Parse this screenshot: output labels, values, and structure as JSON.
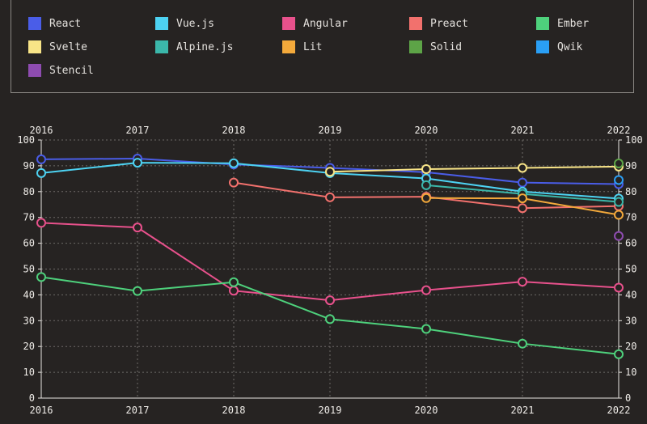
{
  "chart_data": {
    "type": "line",
    "title": "",
    "xlabel": "",
    "ylabel": "",
    "ylim": [
      0,
      100
    ],
    "yticks": [
      0,
      10,
      20,
      30,
      40,
      50,
      60,
      70,
      80,
      90,
      100
    ],
    "grid": true,
    "legend_position": "top",
    "categories": [
      "2016",
      "2017",
      "2018",
      "2019",
      "2020",
      "2021",
      "2022"
    ],
    "series": [
      {
        "name": "React",
        "color": "#4a5de8",
        "values": [
          92.5,
          92.8,
          90.5,
          89.2,
          87.5,
          83.5,
          82.9
        ]
      },
      {
        "name": "Vue.js",
        "color": "#4dd2f2",
        "values": [
          87.2,
          91.2,
          91,
          87.2,
          85.1,
          80,
          77.3
        ]
      },
      {
        "name": "Angular",
        "color": "#e8518c",
        "values": [
          67.9,
          66.1,
          41.6,
          37.9,
          41.8,
          45.1,
          42.8
        ]
      },
      {
        "name": "Preact",
        "color": "#f2716d",
        "values": [
          null,
          null,
          83.5,
          77.8,
          78,
          73.6,
          74.4
        ]
      },
      {
        "name": "Ember",
        "color": "#4ed17c",
        "values": [
          46.9,
          41.5,
          44.9,
          30.6,
          26.8,
          21.1,
          17
        ]
      },
      {
        "name": "Svelte",
        "color": "#f8e487",
        "values": [
          null,
          null,
          null,
          87.7,
          88.7,
          89.2,
          89.7
        ]
      },
      {
        "name": "Alpine.js",
        "color": "#3bb7aa",
        "values": [
          null,
          null,
          null,
          null,
          82.5,
          79.1,
          76
        ]
      },
      {
        "name": "Lit",
        "color": "#f3a93b",
        "values": [
          null,
          null,
          null,
          null,
          77.5,
          77.4,
          71
        ]
      },
      {
        "name": "Solid",
        "color": "#5da447",
        "values": [
          null,
          null,
          null,
          null,
          null,
          null,
          90.9
        ]
      },
      {
        "name": "Qwik",
        "color": "#2a9ff5",
        "values": [
          null,
          null,
          null,
          null,
          null,
          null,
          84.5
        ]
      },
      {
        "name": "Stencil",
        "color": "#8e4cb0",
        "values": [
          null,
          null,
          null,
          null,
          null,
          null,
          62.8
        ]
      }
    ]
  }
}
